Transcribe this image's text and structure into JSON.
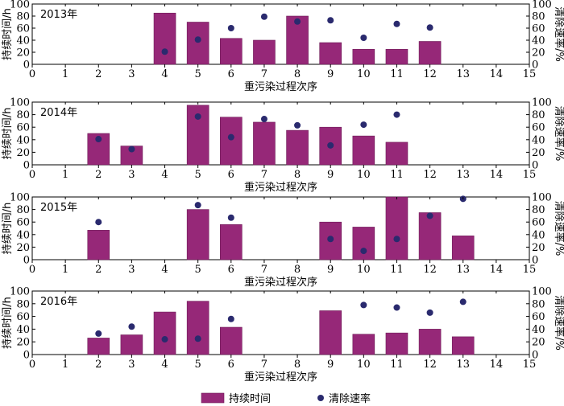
{
  "chart_data": [
    {
      "type": "bar",
      "annotation": "2013年",
      "x": [
        1,
        2,
        3,
        4,
        5,
        6,
        7,
        8,
        9,
        10,
        11,
        12,
        13,
        14
      ],
      "xlim": [
        0,
        15
      ],
      "xticks": [
        0,
        1,
        2,
        3,
        4,
        5,
        6,
        7,
        8,
        9,
        10,
        11,
        12,
        13,
        14,
        15
      ],
      "xlabel": "重污染过程次序",
      "ylabel": "持续时间/h",
      "ylabel_right": "清除速率/%",
      "ylim": [
        0,
        100
      ],
      "yticks": [
        0,
        20,
        40,
        60,
        80,
        100
      ],
      "series": [
        {
          "name": "持续时间",
          "axis": "left",
          "type": "bar",
          "values": [
            null,
            null,
            null,
            85,
            70,
            43,
            40,
            80,
            36,
            25,
            25,
            38,
            null,
            null
          ]
        },
        {
          "name": "清除速率",
          "axis": "right",
          "type": "scatter",
          "values": [
            null,
            null,
            null,
            21,
            41,
            60,
            79,
            71,
            73,
            44,
            67,
            61,
            null,
            null
          ]
        }
      ]
    },
    {
      "type": "bar",
      "annotation": "2014年",
      "x": [
        1,
        2,
        3,
        4,
        5,
        6,
        7,
        8,
        9,
        10,
        11,
        12,
        13,
        14
      ],
      "xlim": [
        0,
        15
      ],
      "xticks": [
        0,
        1,
        2,
        3,
        4,
        5,
        6,
        7,
        8,
        9,
        10,
        11,
        12,
        13,
        14,
        15
      ],
      "xlabel": "重污染过程次序",
      "ylabel": "持续时间/h",
      "ylabel_right": "清除速率/%",
      "ylim": [
        0,
        100
      ],
      "yticks": [
        0,
        20,
        40,
        60,
        80,
        100
      ],
      "series": [
        {
          "name": "持续时间",
          "axis": "left",
          "type": "bar",
          "values": [
            null,
            50,
            30,
            null,
            95,
            76,
            68,
            55,
            60,
            46,
            36,
            null,
            null,
            null
          ]
        },
        {
          "name": "清除速率",
          "axis": "right",
          "type": "scatter",
          "values": [
            null,
            41,
            25,
            null,
            77,
            44,
            73,
            63,
            31,
            64,
            80,
            null,
            null,
            null
          ]
        }
      ]
    },
    {
      "type": "bar",
      "annotation": "2015年",
      "x": [
        1,
        2,
        3,
        4,
        5,
        6,
        7,
        8,
        9,
        10,
        11,
        12,
        13,
        14
      ],
      "xlim": [
        0,
        15
      ],
      "xticks": [
        0,
        1,
        2,
        3,
        4,
        5,
        6,
        7,
        8,
        9,
        10,
        11,
        12,
        13,
        14,
        15
      ],
      "xlabel": "重污染过程次序",
      "ylabel": "持续时间/h",
      "ylabel_right": "清除速率/%",
      "ylim": [
        0,
        100
      ],
      "yticks": [
        0,
        20,
        40,
        60,
        80,
        100
      ],
      "series": [
        {
          "name": "持续时间",
          "axis": "left",
          "type": "bar",
          "values": [
            null,
            47,
            null,
            null,
            80,
            56,
            null,
            null,
            60,
            52,
            100,
            75,
            38,
            null
          ]
        },
        {
          "name": "清除速率",
          "axis": "right",
          "type": "scatter",
          "values": [
            null,
            60,
            null,
            null,
            87,
            67,
            null,
            null,
            33,
            14,
            33,
            70,
            97,
            null
          ]
        }
      ]
    },
    {
      "type": "bar",
      "annotation": "2016年",
      "x": [
        1,
        2,
        3,
        4,
        5,
        6,
        7,
        8,
        9,
        10,
        11,
        12,
        13,
        14
      ],
      "xlim": [
        0,
        15
      ],
      "xticks": [
        0,
        1,
        2,
        3,
        4,
        5,
        6,
        7,
        8,
        9,
        10,
        11,
        12,
        13,
        14,
        15
      ],
      "xlabel": "重污染过程次序",
      "ylabel": "持续时间/h",
      "ylabel_right": "清除速率/%",
      "ylim": [
        0,
        100
      ],
      "yticks": [
        0,
        20,
        40,
        60,
        80,
        100
      ],
      "series": [
        {
          "name": "持续时间",
          "axis": "left",
          "type": "bar",
          "values": [
            null,
            26,
            31,
            67,
            84,
            43,
            null,
            null,
            69,
            32,
            34,
            40,
            28,
            null
          ]
        },
        {
          "name": "清除速率",
          "axis": "right",
          "type": "scatter",
          "values": [
            null,
            33,
            44,
            24,
            25,
            56,
            null,
            null,
            null,
            78,
            74,
            66,
            83,
            null
          ]
        }
      ]
    }
  ],
  "legend": {
    "placement": "bottom-center",
    "items": [
      {
        "label": "持续时间",
        "marker": "bar"
      },
      {
        "label": "清除速率",
        "marker": "dot"
      }
    ]
  },
  "colors": {
    "bar_fill": "#962878",
    "bar_stroke": "#6e1c57",
    "dot_fill": "#2a2a6e",
    "axis": "#000000"
  }
}
